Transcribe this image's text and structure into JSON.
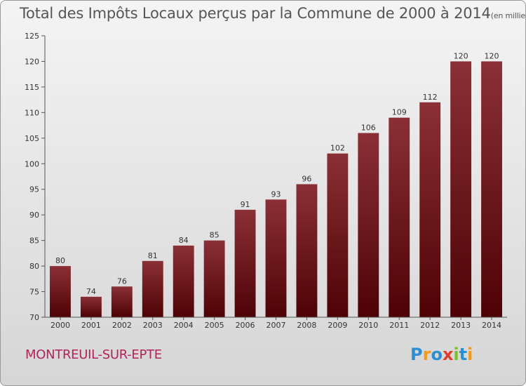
{
  "title": "Total des Impôts Locaux perçus par la Commune de 2000 à 2014",
  "unit": "(en milliers d'€)",
  "commune": "MONTREUIL-SUR-EPTE",
  "logo": {
    "letters": [
      "P",
      "r",
      "o",
      "x",
      "i",
      "t",
      "i"
    ],
    "colors": [
      "#2b8fd1",
      "#f39a1a",
      "#2b8fd1",
      "#e23b2b",
      "#7cbf2a",
      "#2b8fd1",
      "#f39a1a"
    ]
  },
  "colors": {
    "bar_top": "#8a3036",
    "bar_bottom": "#4e0205",
    "title": "#555555",
    "commune": "#b0245a"
  },
  "chart_data": {
    "type": "bar",
    "title": "Total des Impôts Locaux perçus par la Commune de 2000 à 2014",
    "xlabel": "",
    "ylabel": "",
    "categories": [
      "2000",
      "2001",
      "2002",
      "2003",
      "2004",
      "2005",
      "2006",
      "2007",
      "2008",
      "2009",
      "2010",
      "2011",
      "2012",
      "2013",
      "2014"
    ],
    "values": [
      80,
      74,
      76,
      81,
      84,
      85,
      91,
      93,
      96,
      102,
      106,
      109,
      112,
      120,
      120
    ],
    "ylim": [
      70,
      125
    ],
    "yticks": [
      70,
      75,
      80,
      85,
      90,
      95,
      100,
      105,
      110,
      115,
      120,
      125
    ],
    "grid": false,
    "data_labels": true
  }
}
